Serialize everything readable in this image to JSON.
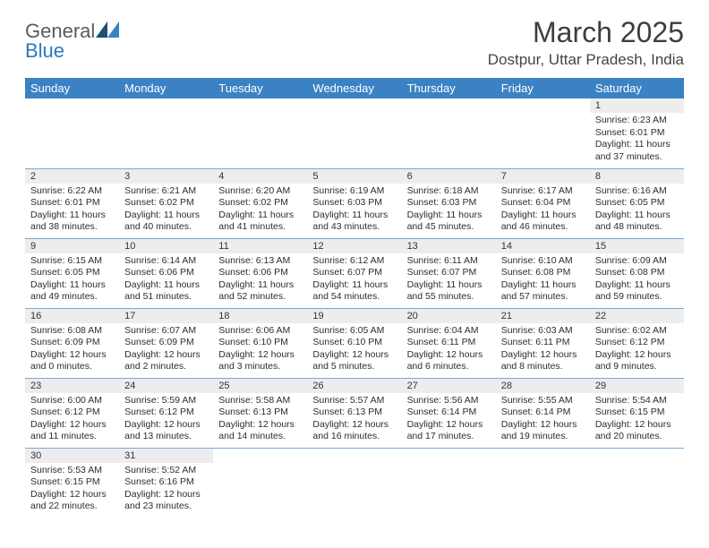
{
  "logo": {
    "general": "General",
    "blue": "Blue"
  },
  "title": "March 2025",
  "location": "Dostpur, Uttar Pradesh, India",
  "colors": {
    "header_bg": "#3b82c4",
    "header_fg": "#ffffff",
    "daybar_bg": "#ededed",
    "row_border": "#7aa9d4",
    "text": "#2d2d2d",
    "logo_gray": "#5b5b5b",
    "logo_blue": "#2a7ac0"
  },
  "fonts": {
    "title_size": 32,
    "location_size": 17,
    "dayhead_size": 13,
    "cell_size": 10.5
  },
  "day_headers": [
    "Sunday",
    "Monday",
    "Tuesday",
    "Wednesday",
    "Thursday",
    "Friday",
    "Saturday"
  ],
  "weeks": [
    [
      {
        "n": "",
        "sr": "",
        "ss": "",
        "dl": ""
      },
      {
        "n": "",
        "sr": "",
        "ss": "",
        "dl": ""
      },
      {
        "n": "",
        "sr": "",
        "ss": "",
        "dl": ""
      },
      {
        "n": "",
        "sr": "",
        "ss": "",
        "dl": ""
      },
      {
        "n": "",
        "sr": "",
        "ss": "",
        "dl": ""
      },
      {
        "n": "",
        "sr": "",
        "ss": "",
        "dl": ""
      },
      {
        "n": "1",
        "sr": "Sunrise: 6:23 AM",
        "ss": "Sunset: 6:01 PM",
        "dl": "Daylight: 11 hours and 37 minutes."
      }
    ],
    [
      {
        "n": "2",
        "sr": "Sunrise: 6:22 AM",
        "ss": "Sunset: 6:01 PM",
        "dl": "Daylight: 11 hours and 38 minutes."
      },
      {
        "n": "3",
        "sr": "Sunrise: 6:21 AM",
        "ss": "Sunset: 6:02 PM",
        "dl": "Daylight: 11 hours and 40 minutes."
      },
      {
        "n": "4",
        "sr": "Sunrise: 6:20 AM",
        "ss": "Sunset: 6:02 PM",
        "dl": "Daylight: 11 hours and 41 minutes."
      },
      {
        "n": "5",
        "sr": "Sunrise: 6:19 AM",
        "ss": "Sunset: 6:03 PM",
        "dl": "Daylight: 11 hours and 43 minutes."
      },
      {
        "n": "6",
        "sr": "Sunrise: 6:18 AM",
        "ss": "Sunset: 6:03 PM",
        "dl": "Daylight: 11 hours and 45 minutes."
      },
      {
        "n": "7",
        "sr": "Sunrise: 6:17 AM",
        "ss": "Sunset: 6:04 PM",
        "dl": "Daylight: 11 hours and 46 minutes."
      },
      {
        "n": "8",
        "sr": "Sunrise: 6:16 AM",
        "ss": "Sunset: 6:05 PM",
        "dl": "Daylight: 11 hours and 48 minutes."
      }
    ],
    [
      {
        "n": "9",
        "sr": "Sunrise: 6:15 AM",
        "ss": "Sunset: 6:05 PM",
        "dl": "Daylight: 11 hours and 49 minutes."
      },
      {
        "n": "10",
        "sr": "Sunrise: 6:14 AM",
        "ss": "Sunset: 6:06 PM",
        "dl": "Daylight: 11 hours and 51 minutes."
      },
      {
        "n": "11",
        "sr": "Sunrise: 6:13 AM",
        "ss": "Sunset: 6:06 PM",
        "dl": "Daylight: 11 hours and 52 minutes."
      },
      {
        "n": "12",
        "sr": "Sunrise: 6:12 AM",
        "ss": "Sunset: 6:07 PM",
        "dl": "Daylight: 11 hours and 54 minutes."
      },
      {
        "n": "13",
        "sr": "Sunrise: 6:11 AM",
        "ss": "Sunset: 6:07 PM",
        "dl": "Daylight: 11 hours and 55 minutes."
      },
      {
        "n": "14",
        "sr": "Sunrise: 6:10 AM",
        "ss": "Sunset: 6:08 PM",
        "dl": "Daylight: 11 hours and 57 minutes."
      },
      {
        "n": "15",
        "sr": "Sunrise: 6:09 AM",
        "ss": "Sunset: 6:08 PM",
        "dl": "Daylight: 11 hours and 59 minutes."
      }
    ],
    [
      {
        "n": "16",
        "sr": "Sunrise: 6:08 AM",
        "ss": "Sunset: 6:09 PM",
        "dl": "Daylight: 12 hours and 0 minutes."
      },
      {
        "n": "17",
        "sr": "Sunrise: 6:07 AM",
        "ss": "Sunset: 6:09 PM",
        "dl": "Daylight: 12 hours and 2 minutes."
      },
      {
        "n": "18",
        "sr": "Sunrise: 6:06 AM",
        "ss": "Sunset: 6:10 PM",
        "dl": "Daylight: 12 hours and 3 minutes."
      },
      {
        "n": "19",
        "sr": "Sunrise: 6:05 AM",
        "ss": "Sunset: 6:10 PM",
        "dl": "Daylight: 12 hours and 5 minutes."
      },
      {
        "n": "20",
        "sr": "Sunrise: 6:04 AM",
        "ss": "Sunset: 6:11 PM",
        "dl": "Daylight: 12 hours and 6 minutes."
      },
      {
        "n": "21",
        "sr": "Sunrise: 6:03 AM",
        "ss": "Sunset: 6:11 PM",
        "dl": "Daylight: 12 hours and 8 minutes."
      },
      {
        "n": "22",
        "sr": "Sunrise: 6:02 AM",
        "ss": "Sunset: 6:12 PM",
        "dl": "Daylight: 12 hours and 9 minutes."
      }
    ],
    [
      {
        "n": "23",
        "sr": "Sunrise: 6:00 AM",
        "ss": "Sunset: 6:12 PM",
        "dl": "Daylight: 12 hours and 11 minutes."
      },
      {
        "n": "24",
        "sr": "Sunrise: 5:59 AM",
        "ss": "Sunset: 6:12 PM",
        "dl": "Daylight: 12 hours and 13 minutes."
      },
      {
        "n": "25",
        "sr": "Sunrise: 5:58 AM",
        "ss": "Sunset: 6:13 PM",
        "dl": "Daylight: 12 hours and 14 minutes."
      },
      {
        "n": "26",
        "sr": "Sunrise: 5:57 AM",
        "ss": "Sunset: 6:13 PM",
        "dl": "Daylight: 12 hours and 16 minutes."
      },
      {
        "n": "27",
        "sr": "Sunrise: 5:56 AM",
        "ss": "Sunset: 6:14 PM",
        "dl": "Daylight: 12 hours and 17 minutes."
      },
      {
        "n": "28",
        "sr": "Sunrise: 5:55 AM",
        "ss": "Sunset: 6:14 PM",
        "dl": "Daylight: 12 hours and 19 minutes."
      },
      {
        "n": "29",
        "sr": "Sunrise: 5:54 AM",
        "ss": "Sunset: 6:15 PM",
        "dl": "Daylight: 12 hours and 20 minutes."
      }
    ],
    [
      {
        "n": "30",
        "sr": "Sunrise: 5:53 AM",
        "ss": "Sunset: 6:15 PM",
        "dl": "Daylight: 12 hours and 22 minutes."
      },
      {
        "n": "31",
        "sr": "Sunrise: 5:52 AM",
        "ss": "Sunset: 6:16 PM",
        "dl": "Daylight: 12 hours and 23 minutes."
      },
      {
        "n": "",
        "sr": "",
        "ss": "",
        "dl": ""
      },
      {
        "n": "",
        "sr": "",
        "ss": "",
        "dl": ""
      },
      {
        "n": "",
        "sr": "",
        "ss": "",
        "dl": ""
      },
      {
        "n": "",
        "sr": "",
        "ss": "",
        "dl": ""
      },
      {
        "n": "",
        "sr": "",
        "ss": "",
        "dl": ""
      }
    ]
  ]
}
